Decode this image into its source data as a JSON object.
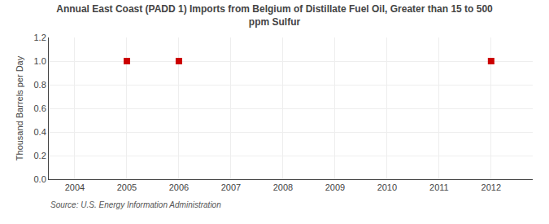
{
  "chart_data": {
    "type": "scatter",
    "title": "Annual East Coast (PADD 1) Imports from Belgium of Distillate Fuel Oil, Greater than 15 to 500\nppm Sulfur",
    "ylabel": "Thousand Barrels per Day",
    "source": "Source: U.S. Energy Information Administration",
    "x": [
      2005,
      2006,
      2012
    ],
    "values": [
      1.0,
      1.0,
      1.0
    ],
    "color": "#cc0000",
    "marker": "square",
    "xlim": [
      2003.5,
      2012.8
    ],
    "xticks": [
      2004,
      2005,
      2006,
      2007,
      2008,
      2009,
      2010,
      2011,
      2012
    ],
    "ylim": [
      0.0,
      1.2
    ],
    "yticks": [
      {
        "value": 0.0,
        "label": "0.0"
      },
      0.2,
      0.4,
      0.6,
      0.8,
      {
        "value": 1.0,
        "label": "1.0"
      },
      1.2
    ],
    "grid": true
  }
}
